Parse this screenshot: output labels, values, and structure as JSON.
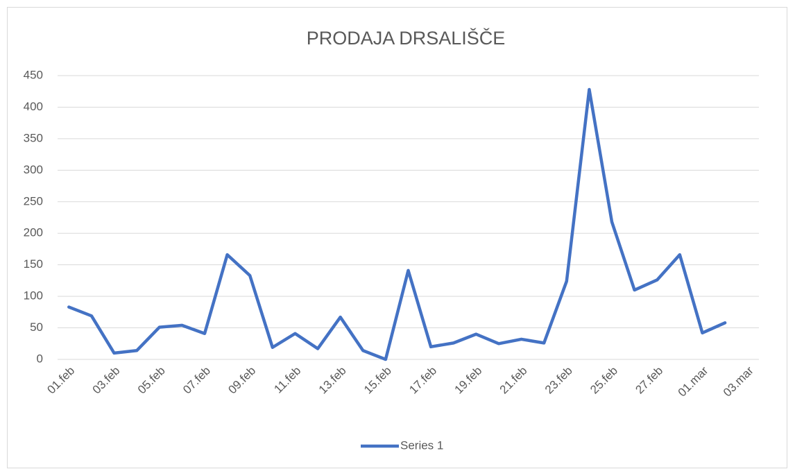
{
  "chart_data": {
    "type": "line",
    "title": "PRODAJA DRSALIŠČE",
    "categories": [
      "01.feb",
      null,
      "03.feb",
      null,
      "05.feb",
      null,
      "07.feb",
      null,
      "09.feb",
      null,
      "11.feb",
      null,
      "13.feb",
      null,
      "15.feb",
      null,
      "17.feb",
      null,
      "19.feb",
      null,
      "21.feb",
      null,
      "23.feb",
      null,
      "25.feb",
      null,
      "27.feb",
      null,
      "01.mar",
      null,
      "03.mar"
    ],
    "series": [
      {
        "name": "Series 1",
        "color": "#4472c4",
        "values": [
          83,
          69,
          10,
          14,
          51,
          54,
          41,
          166,
          133,
          19,
          41,
          17,
          67,
          14,
          0,
          141,
          20,
          26,
          40,
          25,
          32,
          26,
          124,
          428,
          218,
          110,
          126,
          166,
          42,
          58,
          null
        ]
      }
    ],
    "ylim": [
      0,
      450
    ],
    "yticks": [
      0,
      50,
      100,
      150,
      200,
      250,
      300,
      350,
      400,
      450
    ],
    "grid": true,
    "legend": "bottom"
  }
}
